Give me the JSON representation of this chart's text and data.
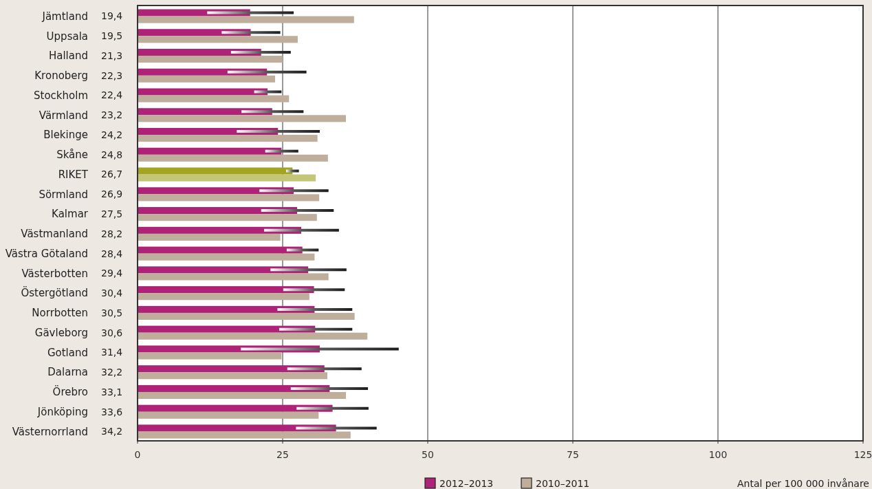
{
  "chart_data": {
    "type": "bar",
    "orientation": "horizontal",
    "categories": [
      "Jämtland",
      "Uppsala",
      "Halland",
      "Kronoberg",
      "Stockholm",
      "Värmland",
      "Blekinge",
      "Skåne",
      "RIKET",
      "Sörmland",
      "Kalmar",
      "Västmanland",
      "Västra Götaland",
      "Västerbotten",
      "Östergötland",
      "Norrbotten",
      "Gävleborg",
      "Gotland",
      "Dalarna",
      "Örebro",
      "Jönköping",
      "Västernorrland"
    ],
    "series": [
      {
        "name": "2012–2013",
        "color": "#ae2277",
        "colors": [
          "#ae2277",
          "#ae2277",
          "#ae2277",
          "#ae2277",
          "#ae2277",
          "#ae2277",
          "#ae2277",
          "#ae2277",
          "#a4a421",
          "#ae2277",
          "#ae2277",
          "#ae2277",
          "#ae2277",
          "#ae2277",
          "#ae2277",
          "#ae2277",
          "#ae2277",
          "#ae2277",
          "#ae2277",
          "#ae2277",
          "#ae2277",
          "#ae2277"
        ],
        "values": [
          19.4,
          19.5,
          21.3,
          22.3,
          22.4,
          23.2,
          24.2,
          24.8,
          26.7,
          26.9,
          27.5,
          28.2,
          28.4,
          29.4,
          30.4,
          30.5,
          30.6,
          31.4,
          32.2,
          33.1,
          33.6,
          34.2
        ],
        "value_labels": [
          "19,4",
          "19,5",
          "21,3",
          "22,3",
          "22,4",
          "23,2",
          "24,2",
          "24,8",
          "26,7",
          "26,9",
          "27,5",
          "28,2",
          "28,4",
          "29,4",
          "30,4",
          "30,5",
          "30,6",
          "31,4",
          "32,2",
          "33,1",
          "33,6",
          "34,2"
        ],
        "errors": [
          [
            12.0,
            26.9
          ],
          [
            14.5,
            24.6
          ],
          [
            16.1,
            26.4
          ],
          [
            15.5,
            29.1
          ],
          [
            20.1,
            24.8
          ],
          [
            17.9,
            28.6
          ],
          [
            17.1,
            31.4
          ],
          [
            22.0,
            27.7
          ],
          [
            25.6,
            27.8
          ],
          [
            21.0,
            32.9
          ],
          [
            21.3,
            33.8
          ],
          [
            21.8,
            34.7
          ],
          [
            25.7,
            31.2
          ],
          [
            22.9,
            36.0
          ],
          [
            25.1,
            35.7
          ],
          [
            24.1,
            37.0
          ],
          [
            24.4,
            37.0
          ],
          [
            17.8,
            45.0
          ],
          [
            25.8,
            38.6
          ],
          [
            26.4,
            39.7
          ],
          [
            27.4,
            39.8
          ],
          [
            27.3,
            41.2
          ]
        ]
      },
      {
        "name": "2010–2011",
        "color": "#bfae9c",
        "colors": [
          "#bfae9c",
          "#bfae9c",
          "#bfae9c",
          "#bfae9c",
          "#bfae9c",
          "#bfae9c",
          "#bfae9c",
          "#bfae9c",
          "#c4c577",
          "#bfae9c",
          "#bfae9c",
          "#bfae9c",
          "#bfae9c",
          "#bfae9c",
          "#bfae9c",
          "#bfae9c",
          "#bfae9c",
          "#bfae9c",
          "#bfae9c",
          "#bfae9c",
          "#bfae9c",
          "#bfae9c"
        ],
        "values": [
          37.3,
          27.6,
          25.0,
          23.7,
          26.1,
          35.9,
          31.0,
          32.8,
          30.7,
          31.3,
          30.9,
          24.6,
          30.5,
          32.9,
          29.6,
          37.4,
          39.6,
          24.8,
          32.7,
          35.9,
          31.2,
          36.7
        ]
      }
    ],
    "xlim": [
      0,
      125
    ],
    "xticks": [
      0,
      25,
      50,
      75,
      100,
      125
    ],
    "grid": "x",
    "legend": "bottom",
    "annotations": [
      "Antal per 100 000 invånare"
    ]
  }
}
